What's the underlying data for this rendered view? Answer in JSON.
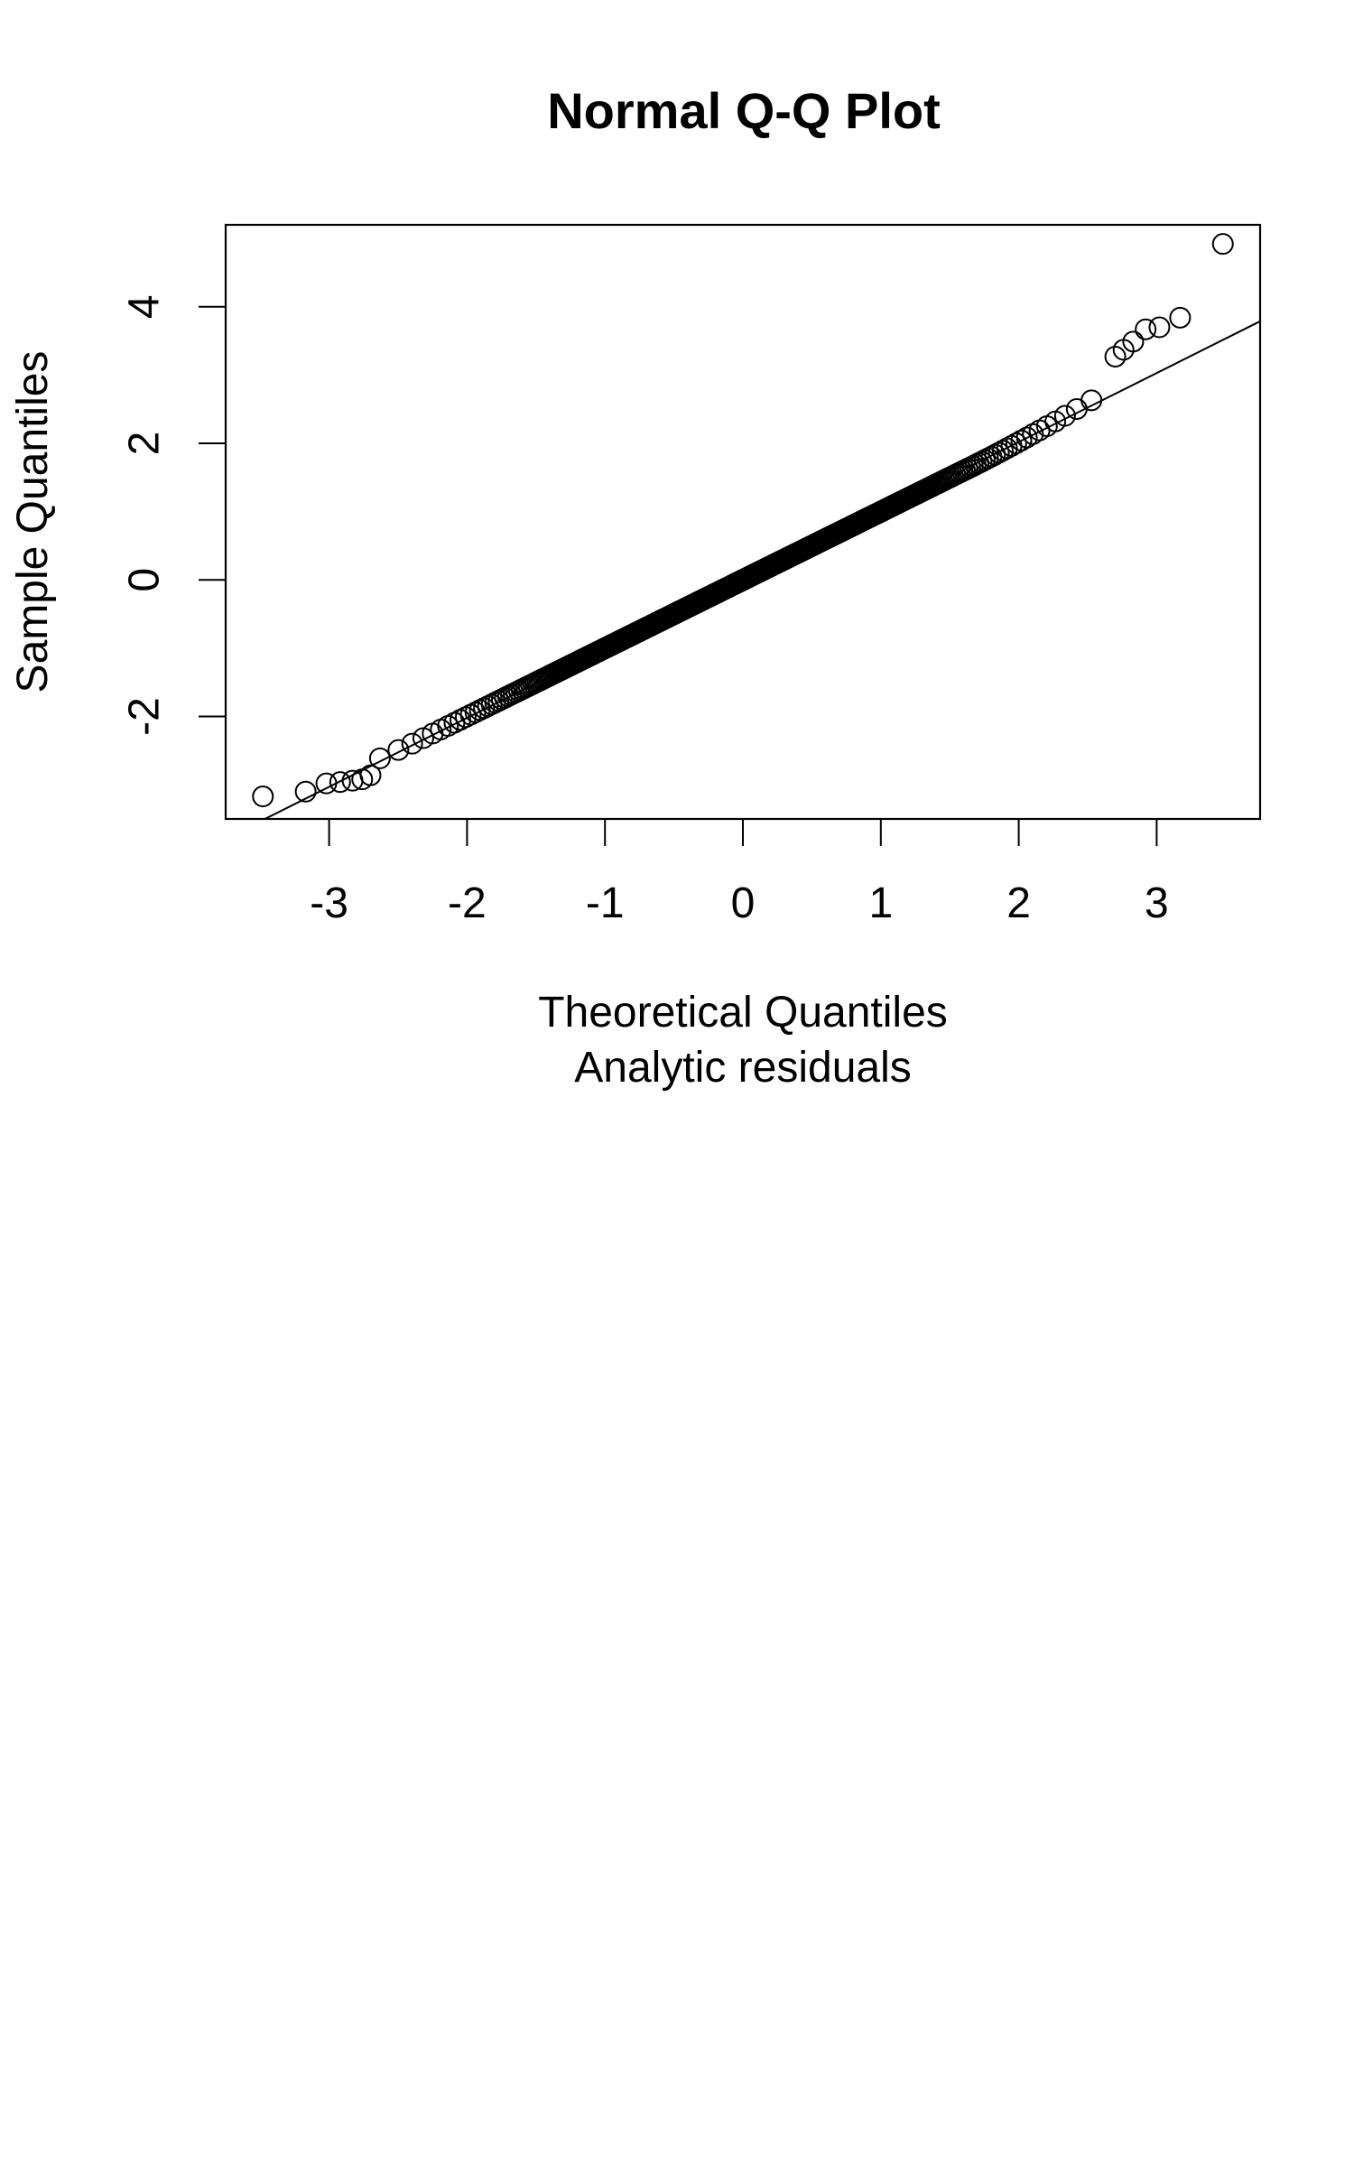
{
  "chart_data": {
    "type": "scatter",
    "title": "Normal Q-Q Plot",
    "xlabel": "Theoretical Quantiles",
    "ylabel": "Sample Quantiles",
    "caption": "Analytic residuals",
    "xlim": [
      -3.75,
      3.75
    ],
    "ylim": [
      -3.5,
      5.2
    ],
    "x_ticks": [
      -3,
      -2,
      -1,
      0,
      1,
      2,
      3
    ],
    "y_ticks": [
      -2,
      0,
      2,
      4
    ],
    "grid": false,
    "reference_line": {
      "intercept": 0.0,
      "slope": 1.01
    },
    "sample_size": 2000,
    "extreme_points": [
      {
        "x": 3.48,
        "y": 4.92
      },
      {
        "x": 3.17,
        "y": 3.84
      },
      {
        "x": 3.02,
        "y": 3.7
      },
      {
        "x": 2.92,
        "y": 3.67
      },
      {
        "x": 2.83,
        "y": 3.49
      },
      {
        "x": 2.76,
        "y": 3.37
      },
      {
        "x": 2.7,
        "y": 3.27
      },
      {
        "x": -3.48,
        "y": -3.17
      },
      {
        "x": -3.17,
        "y": -3.1
      },
      {
        "x": -3.02,
        "y": -2.98
      },
      {
        "x": -2.92,
        "y": -2.96
      },
      {
        "x": -2.83,
        "y": -2.94
      },
      {
        "x": -2.76,
        "y": -2.92
      },
      {
        "x": -2.7,
        "y": -2.86
      }
    ]
  }
}
